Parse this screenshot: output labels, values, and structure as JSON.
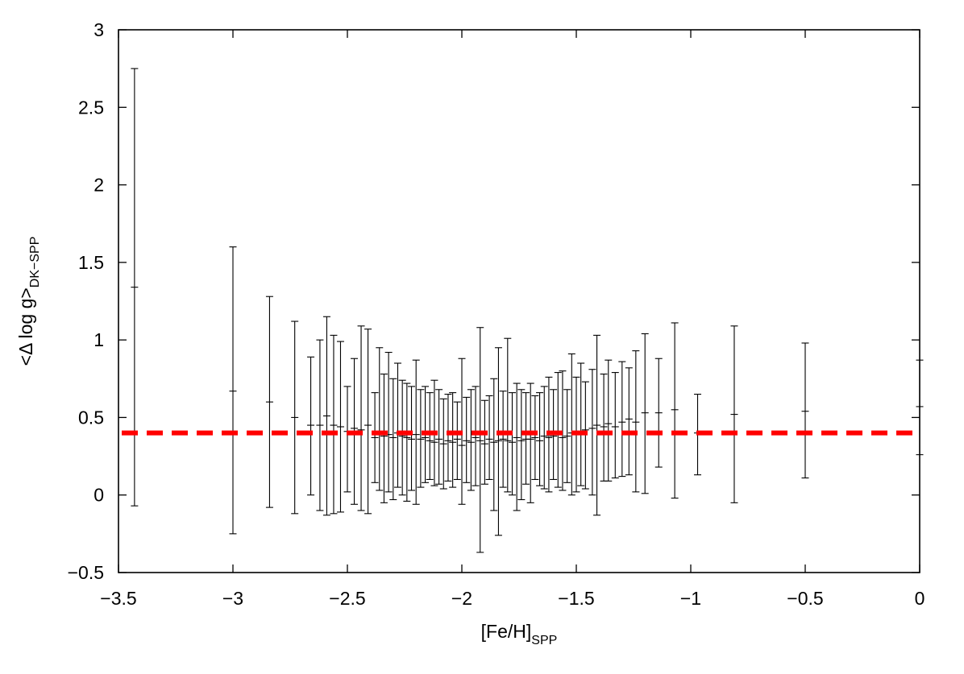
{
  "chart_data": {
    "type": "scatter",
    "style": "error-bars",
    "xlabel": {
      "main": "[Fe/H]",
      "sub": "SPP"
    },
    "ylabel": {
      "main": "<Δ log g>",
      "sub": "DK−SPP"
    },
    "xlim": [
      -3.5,
      0
    ],
    "ylim": [
      -0.5,
      3
    ],
    "xticks": [
      -3.5,
      -3,
      -2.5,
      -2,
      -1.5,
      -1,
      -0.5,
      0
    ],
    "xtick_labels": [
      "−3.5",
      "−3",
      "−2.5",
      "−2",
      "−1.5",
      "−1",
      "−0.5",
      "0"
    ],
    "yticks": [
      -0.5,
      0,
      0.5,
      1,
      1.5,
      2,
      2.5,
      3
    ],
    "ytick_labels": [
      "−0.5",
      "0",
      "0.5",
      "1",
      "1.5",
      "2",
      "2.5",
      "3"
    ],
    "grid": false,
    "reference_line": {
      "y": 0.4,
      "color": "#ff0000",
      "style": "dashed"
    },
    "series": [
      {
        "points": [
          {
            "x": -3.43,
            "y": 1.34,
            "lo": -0.07,
            "hi": 2.75
          },
          {
            "x": -3.0,
            "y": 0.67,
            "lo": -0.25,
            "hi": 1.6
          },
          {
            "x": -2.84,
            "y": 0.6,
            "lo": -0.08,
            "hi": 1.28
          },
          {
            "x": -2.73,
            "y": 0.5,
            "lo": -0.12,
            "hi": 1.12
          },
          {
            "x": -2.66,
            "y": 0.45,
            "lo": 0.0,
            "hi": 0.89
          },
          {
            "x": -2.62,
            "y": 0.45,
            "lo": -0.1,
            "hi": 1.0
          },
          {
            "x": -2.59,
            "y": 0.51,
            "lo": -0.13,
            "hi": 1.15
          },
          {
            "x": -2.56,
            "y": 0.45,
            "lo": -0.12,
            "hi": 1.03
          },
          {
            "x": -2.53,
            "y": 0.44,
            "lo": -0.11,
            "hi": 0.99
          },
          {
            "x": -2.5,
            "y": 0.41,
            "lo": 0.02,
            "hi": 0.7
          },
          {
            "x": -2.47,
            "y": 0.43,
            "lo": -0.06,
            "hi": 0.88
          },
          {
            "x": -2.44,
            "y": 0.42,
            "lo": -0.1,
            "hi": 1.09
          },
          {
            "x": -2.41,
            "y": 0.45,
            "lo": -0.12,
            "hi": 1.07
          },
          {
            "x": -2.38,
            "y": 0.37,
            "lo": 0.08,
            "hi": 0.66
          },
          {
            "x": -2.36,
            "y": 0.4,
            "lo": 0.03,
            "hi": 0.95
          },
          {
            "x": -2.34,
            "y": 0.38,
            "lo": -0.05,
            "hi": 0.78
          },
          {
            "x": -2.32,
            "y": 0.39,
            "lo": 0.02,
            "hi": 0.92
          },
          {
            "x": -2.3,
            "y": 0.37,
            "lo": -0.03,
            "hi": 0.75
          },
          {
            "x": -2.28,
            "y": 0.4,
            "lo": 0.05,
            "hi": 0.85
          },
          {
            "x": -2.26,
            "y": 0.38,
            "lo": 0.0,
            "hi": 0.74
          },
          {
            "x": -2.24,
            "y": 0.37,
            "lo": -0.04,
            "hi": 0.72
          },
          {
            "x": -2.22,
            "y": 0.36,
            "lo": 0.03,
            "hi": 0.7
          },
          {
            "x": -2.2,
            "y": 0.39,
            "lo": -0.06,
            "hi": 0.87
          },
          {
            "x": -2.18,
            "y": 0.36,
            "lo": 0.05,
            "hi": 0.68
          },
          {
            "x": -2.16,
            "y": 0.37,
            "lo": 0.08,
            "hi": 0.7
          },
          {
            "x": -2.14,
            "y": 0.35,
            "lo": 0.1,
            "hi": 0.66
          },
          {
            "x": -2.12,
            "y": 0.34,
            "lo": 0.06,
            "hi": 0.74
          },
          {
            "x": -2.1,
            "y": 0.36,
            "lo": 0.07,
            "hi": 0.68
          },
          {
            "x": -2.08,
            "y": 0.33,
            "lo": 0.04,
            "hi": 0.62
          },
          {
            "x": -2.06,
            "y": 0.35,
            "lo": 0.09,
            "hi": 0.65
          },
          {
            "x": -2.04,
            "y": 0.34,
            "lo": 0.05,
            "hi": 0.66
          },
          {
            "x": -2.02,
            "y": 0.36,
            "lo": 0.1,
            "hi": 0.6
          },
          {
            "x": -2.0,
            "y": 0.32,
            "lo": -0.06,
            "hi": 0.88
          },
          {
            "x": -1.98,
            "y": 0.35,
            "lo": 0.08,
            "hi": 0.63
          },
          {
            "x": -1.96,
            "y": 0.34,
            "lo": 0.03,
            "hi": 0.68
          },
          {
            "x": -1.94,
            "y": 0.37,
            "lo": 0.06,
            "hi": 0.7
          },
          {
            "x": -1.92,
            "y": 0.35,
            "lo": -0.37,
            "hi": 1.08
          },
          {
            "x": -1.9,
            "y": 0.33,
            "lo": 0.07,
            "hi": 0.61
          },
          {
            "x": -1.88,
            "y": 0.36,
            "lo": 0.1,
            "hi": 0.64
          },
          {
            "x": -1.86,
            "y": 0.34,
            "lo": -0.1,
            "hi": 0.75
          },
          {
            "x": -1.84,
            "y": 0.35,
            "lo": -0.26,
            "hi": 0.95
          },
          {
            "x": -1.82,
            "y": 0.36,
            "lo": 0.05,
            "hi": 0.67
          },
          {
            "x": -1.8,
            "y": 0.35,
            "lo": 0.02,
            "hi": 1.01
          },
          {
            "x": -1.78,
            "y": 0.34,
            "lo": 0.0,
            "hi": 0.66
          },
          {
            "x": -1.76,
            "y": 0.37,
            "lo": -0.1,
            "hi": 0.72
          },
          {
            "x": -1.74,
            "y": 0.35,
            "lo": -0.03,
            "hi": 0.68
          },
          {
            "x": -1.72,
            "y": 0.36,
            "lo": 0.07,
            "hi": 0.66
          },
          {
            "x": -1.7,
            "y": 0.36,
            "lo": -0.05,
            "hi": 0.72
          },
          {
            "x": -1.68,
            "y": 0.37,
            "lo": 0.1,
            "hi": 0.64
          },
          {
            "x": -1.66,
            "y": 0.35,
            "lo": 0.06,
            "hi": 0.66
          },
          {
            "x": -1.64,
            "y": 0.38,
            "lo": 0.04,
            "hi": 0.7
          },
          {
            "x": -1.62,
            "y": 0.37,
            "lo": 0.02,
            "hi": 0.76
          },
          {
            "x": -1.6,
            "y": 0.38,
            "lo": 0.1,
            "hi": 0.68
          },
          {
            "x": -1.58,
            "y": 0.39,
            "lo": 0.05,
            "hi": 0.79
          },
          {
            "x": -1.56,
            "y": 0.37,
            "lo": 0.03,
            "hi": 0.8
          },
          {
            "x": -1.54,
            "y": 0.38,
            "lo": 0.08,
            "hi": 0.68
          },
          {
            "x": -1.52,
            "y": 0.4,
            "lo": 0.0,
            "hi": 0.91
          },
          {
            "x": -1.5,
            "y": 0.39,
            "lo": 0.02,
            "hi": 0.76
          },
          {
            "x": -1.48,
            "y": 0.41,
            "lo": 0.06,
            "hi": 0.85
          },
          {
            "x": -1.46,
            "y": 0.42,
            "lo": 0.04,
            "hi": 0.73
          },
          {
            "x": -1.43,
            "y": 0.43,
            "lo": 0.0,
            "hi": 0.81
          },
          {
            "x": -1.41,
            "y": 0.45,
            "lo": -0.13,
            "hi": 1.03
          },
          {
            "x": -1.38,
            "y": 0.44,
            "lo": 0.09,
            "hi": 0.78
          },
          {
            "x": -1.36,
            "y": 0.46,
            "lo": 0.09,
            "hi": 0.87
          },
          {
            "x": -1.33,
            "y": 0.44,
            "lo": 0.11,
            "hi": 0.79
          },
          {
            "x": -1.3,
            "y": 0.47,
            "lo": 0.12,
            "hi": 0.86
          },
          {
            "x": -1.27,
            "y": 0.49,
            "lo": 0.13,
            "hi": 0.82
          },
          {
            "x": -1.24,
            "y": 0.47,
            "lo": 0.02,
            "hi": 0.93
          },
          {
            "x": -1.2,
            "y": 0.53,
            "lo": 0.01,
            "hi": 1.04
          },
          {
            "x": -1.14,
            "y": 0.53,
            "lo": 0.18,
            "hi": 0.88
          },
          {
            "x": -1.07,
            "y": 0.55,
            "lo": -0.02,
            "hi": 1.11
          },
          {
            "x": -0.97,
            "y": 0.4,
            "lo": 0.13,
            "hi": 0.65
          },
          {
            "x": -0.81,
            "y": 0.52,
            "lo": -0.05,
            "hi": 1.09
          },
          {
            "x": -0.5,
            "y": 0.54,
            "lo": 0.11,
            "hi": 0.98
          },
          {
            "x": 0.0,
            "y": 0.57,
            "lo": 0.26,
            "hi": 0.87
          }
        ]
      }
    ]
  }
}
